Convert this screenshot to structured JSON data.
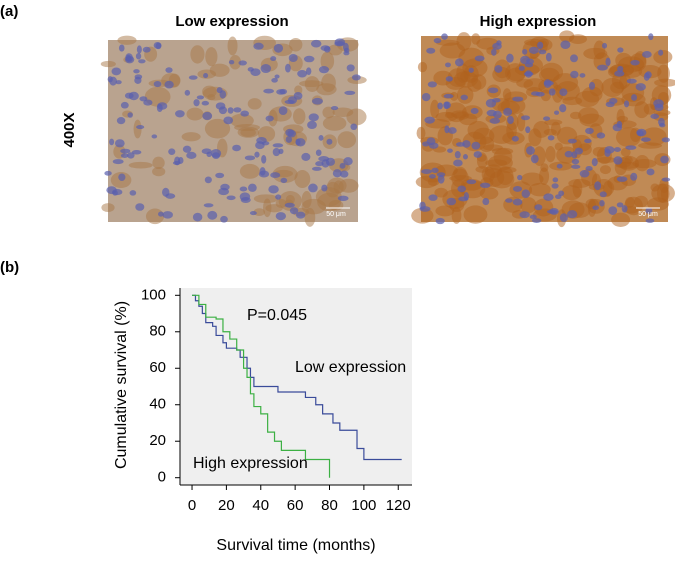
{
  "panels": {
    "a": {
      "label": "(a)",
      "magnification": "400X",
      "images": [
        {
          "title": "Low expression",
          "scale_bar": "50 μm"
        },
        {
          "title": "High expression",
          "scale_bar": "50 μm"
        }
      ]
    },
    "b": {
      "label": "(b)"
    }
  },
  "chart_data": {
    "type": "line",
    "xlabel": "Survival time (months)",
    "ylabel": "Cumulative survival (%)",
    "annotations": [
      "P=0.045",
      "Low expression",
      "High expression"
    ],
    "xlim": [
      -7,
      128
    ],
    "ylim": [
      -4,
      104
    ],
    "xticks": [
      0,
      20,
      40,
      60,
      80,
      100,
      120
    ],
    "yticks": [
      0,
      20,
      40,
      60,
      80,
      100
    ],
    "background": "#efefef",
    "series": [
      {
        "name": "Low expression",
        "color": "#3a4b9a",
        "x": [
          0,
          2,
          2,
          4,
          4,
          6,
          6,
          8,
          8,
          12,
          12,
          14,
          14,
          18,
          18,
          20,
          20,
          26,
          26,
          28,
          28,
          32,
          32,
          34,
          34,
          36,
          36,
          50,
          50,
          66,
          66,
          72,
          72,
          76,
          76,
          82,
          82,
          86,
          86,
          96,
          96,
          100,
          100,
          122
        ],
        "values": [
          100,
          100,
          97,
          97,
          94,
          94,
          90,
          90,
          85,
          85,
          83,
          83,
          78,
          78,
          74,
          74,
          71,
          71,
          70,
          70,
          66,
          66,
          60,
          60,
          55,
          55,
          50,
          50,
          47,
          47,
          44,
          44,
          40,
          40,
          35,
          35,
          30,
          30,
          26,
          26,
          16,
          16,
          10,
          10
        ]
      },
      {
        "name": "High expression",
        "color": "#3cb043",
        "x": [
          0,
          4,
          4,
          8,
          8,
          14,
          14,
          18,
          18,
          22,
          22,
          26,
          26,
          30,
          30,
          32,
          32,
          34,
          34,
          36,
          36,
          40,
          40,
          44,
          44,
          48,
          48,
          52,
          52,
          66,
          66,
          80,
          80
        ],
        "values": [
          100,
          100,
          95,
          95,
          88,
          88,
          87,
          87,
          80,
          80,
          76,
          76,
          70,
          70,
          60,
          60,
          55,
          55,
          46,
          46,
          39,
          39,
          35,
          35,
          25,
          25,
          20,
          20,
          15,
          15,
          10,
          10,
          0
        ]
      }
    ]
  }
}
